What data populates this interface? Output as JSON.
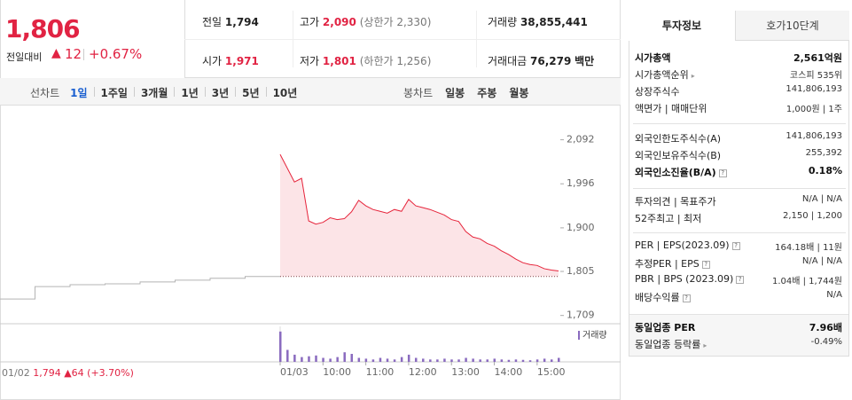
{
  "header": {
    "price": "1,806",
    "change_label": "전일대비",
    "change_arrow": "▲",
    "change": "12",
    "change_rate": "+0.67%"
  },
  "summary": {
    "rows": [
      [
        {
          "label": "전일",
          "value": "1,794"
        },
        {
          "label": "고가",
          "value": "2,090",
          "note": "(상한가 2,330)"
        },
        {
          "label": "거래량",
          "value": "38,855,441"
        }
      ],
      [
        {
          "label": "시가",
          "value": "1,971"
        },
        {
          "label": "저가",
          "value": "1,801",
          "note": "(하한가 1,256)"
        },
        {
          "label": "거래대금",
          "value": "76,279",
          "unit": "백만"
        }
      ]
    ]
  },
  "tabs": {
    "line_label": "선차트",
    "line": [
      "1일",
      "1주일",
      "3개월",
      "1년",
      "3년",
      "5년",
      "10년"
    ],
    "candle_label": "봉차트",
    "candle": [
      "일봉",
      "주봉",
      "월봉"
    ]
  },
  "chart_data": {
    "type": "line",
    "x": [
      "09:00",
      "09:10",
      "09:20",
      "09:30",
      "09:40",
      "09:50",
      "10:00",
      "10:10",
      "10:20",
      "10:30",
      "10:40",
      "10:50",
      "11:00",
      "11:10",
      "11:20",
      "11:30",
      "11:40",
      "11:50",
      "12:00",
      "12:10",
      "12:20",
      "12:30",
      "12:40",
      "12:50",
      "13:00",
      "13:10",
      "13:20",
      "13:30",
      "13:40",
      "13:50",
      "14:00",
      "14:10",
      "14:20",
      "14:30",
      "14:40",
      "14:50",
      "15:00",
      "15:10",
      "15:20",
      "15:30"
    ],
    "series": [
      {
        "color": "#e6243b",
        "values": [
          2060,
          2030,
          2000,
          2008,
          1915,
          1908,
          1912,
          1922,
          1918,
          1920,
          1935,
          1960,
          1948,
          1940,
          1936,
          1932,
          1940,
          1936,
          1962,
          1948,
          1944,
          1940,
          1934,
          1928,
          1918,
          1914,
          1892,
          1880,
          1876,
          1866,
          1860,
          1850,
          1842,
          1832,
          1824,
          1820,
          1818,
          1811,
          1808,
          1806
        ]
      },
      {
        "name": "거래량",
        "color": "#8a6bbf",
        "axis": "y2",
        "values": [
          3800000,
          1500000,
          900000,
          600000,
          700000,
          800000,
          500000,
          400000,
          600000,
          1200000,
          1000000,
          500000,
          400000,
          300000,
          500000,
          400000,
          300000,
          600000,
          900000,
          500000,
          400000,
          300000,
          300000,
          400000,
          300000,
          300000,
          500000,
          400000,
          300000,
          300000,
          400000,
          300000,
          250000,
          300000,
          250000,
          200000,
          300000,
          400000,
          300000,
          500000
        ]
      }
    ],
    "ylim": [
      1691,
      2155
    ],
    "yticks": [
      {
        "value": 2092,
        "label": "2,092"
      },
      {
        "value": 1996,
        "label": "1,996"
      },
      {
        "value": 1900,
        "label": "1,900"
      },
      {
        "value": 1805,
        "label": "1,805"
      },
      {
        "value": 1709,
        "label": "1,709"
      }
    ],
    "y2lim": [
      0,
      4000000
    ],
    "xticks": [
      {
        "value": "09:00",
        "label": "01/03"
      },
      "10:00",
      "11:00",
      "12:00",
      "13:00",
      "14:00",
      "15:00"
    ],
    "base": 1794,
    "prev_day": {
      "date": "01/02",
      "close": "1,794",
      "arrow": "▲",
      "change": "64",
      "rate": "(+3.70%)",
      "color": "#b4b4b4",
      "values": [
        1745,
        1772,
        1776,
        1778,
        1782,
        1786,
        1790,
        1794
      ]
    }
  },
  "info": {
    "tabs": [
      "투자정보",
      "호가10단계"
    ],
    "groups": [
      [
        [
          "시가총액",
          "2,561억원"
        ],
        [
          "시가총액순위",
          "코스피 535위"
        ],
        [
          "상장주식수",
          "141,806,193"
        ],
        [
          "액면가 | 매매단위",
          "1,000원 | 1주"
        ]
      ],
      [
        [
          "외국인한도주식수(A)",
          "141,806,193"
        ],
        [
          "외국인보유주식수(B)",
          "255,392"
        ],
        [
          "외국인소진율(B/A)",
          "0.18%"
        ]
      ],
      [
        [
          "투자의견 | 목표주가",
          "N/A | N/A"
        ],
        [
          "52주최고 | 최저",
          "2,150 | 1,200"
        ]
      ],
      [
        [
          "PER | EPS(2023.09)",
          "164.18배 | 11원"
        ],
        [
          "추정PER | EPS",
          "N/A | N/A"
        ],
        [
          "PBR | BPS (2023.09)",
          "1.04배 | 1,744원"
        ],
        [
          "배당수익률",
          "N/A"
        ]
      ],
      [
        [
          "동일업종 PER",
          "7.96배"
        ],
        [
          "동일업종 등락률",
          "-0.49%"
        ]
      ]
    ]
  }
}
